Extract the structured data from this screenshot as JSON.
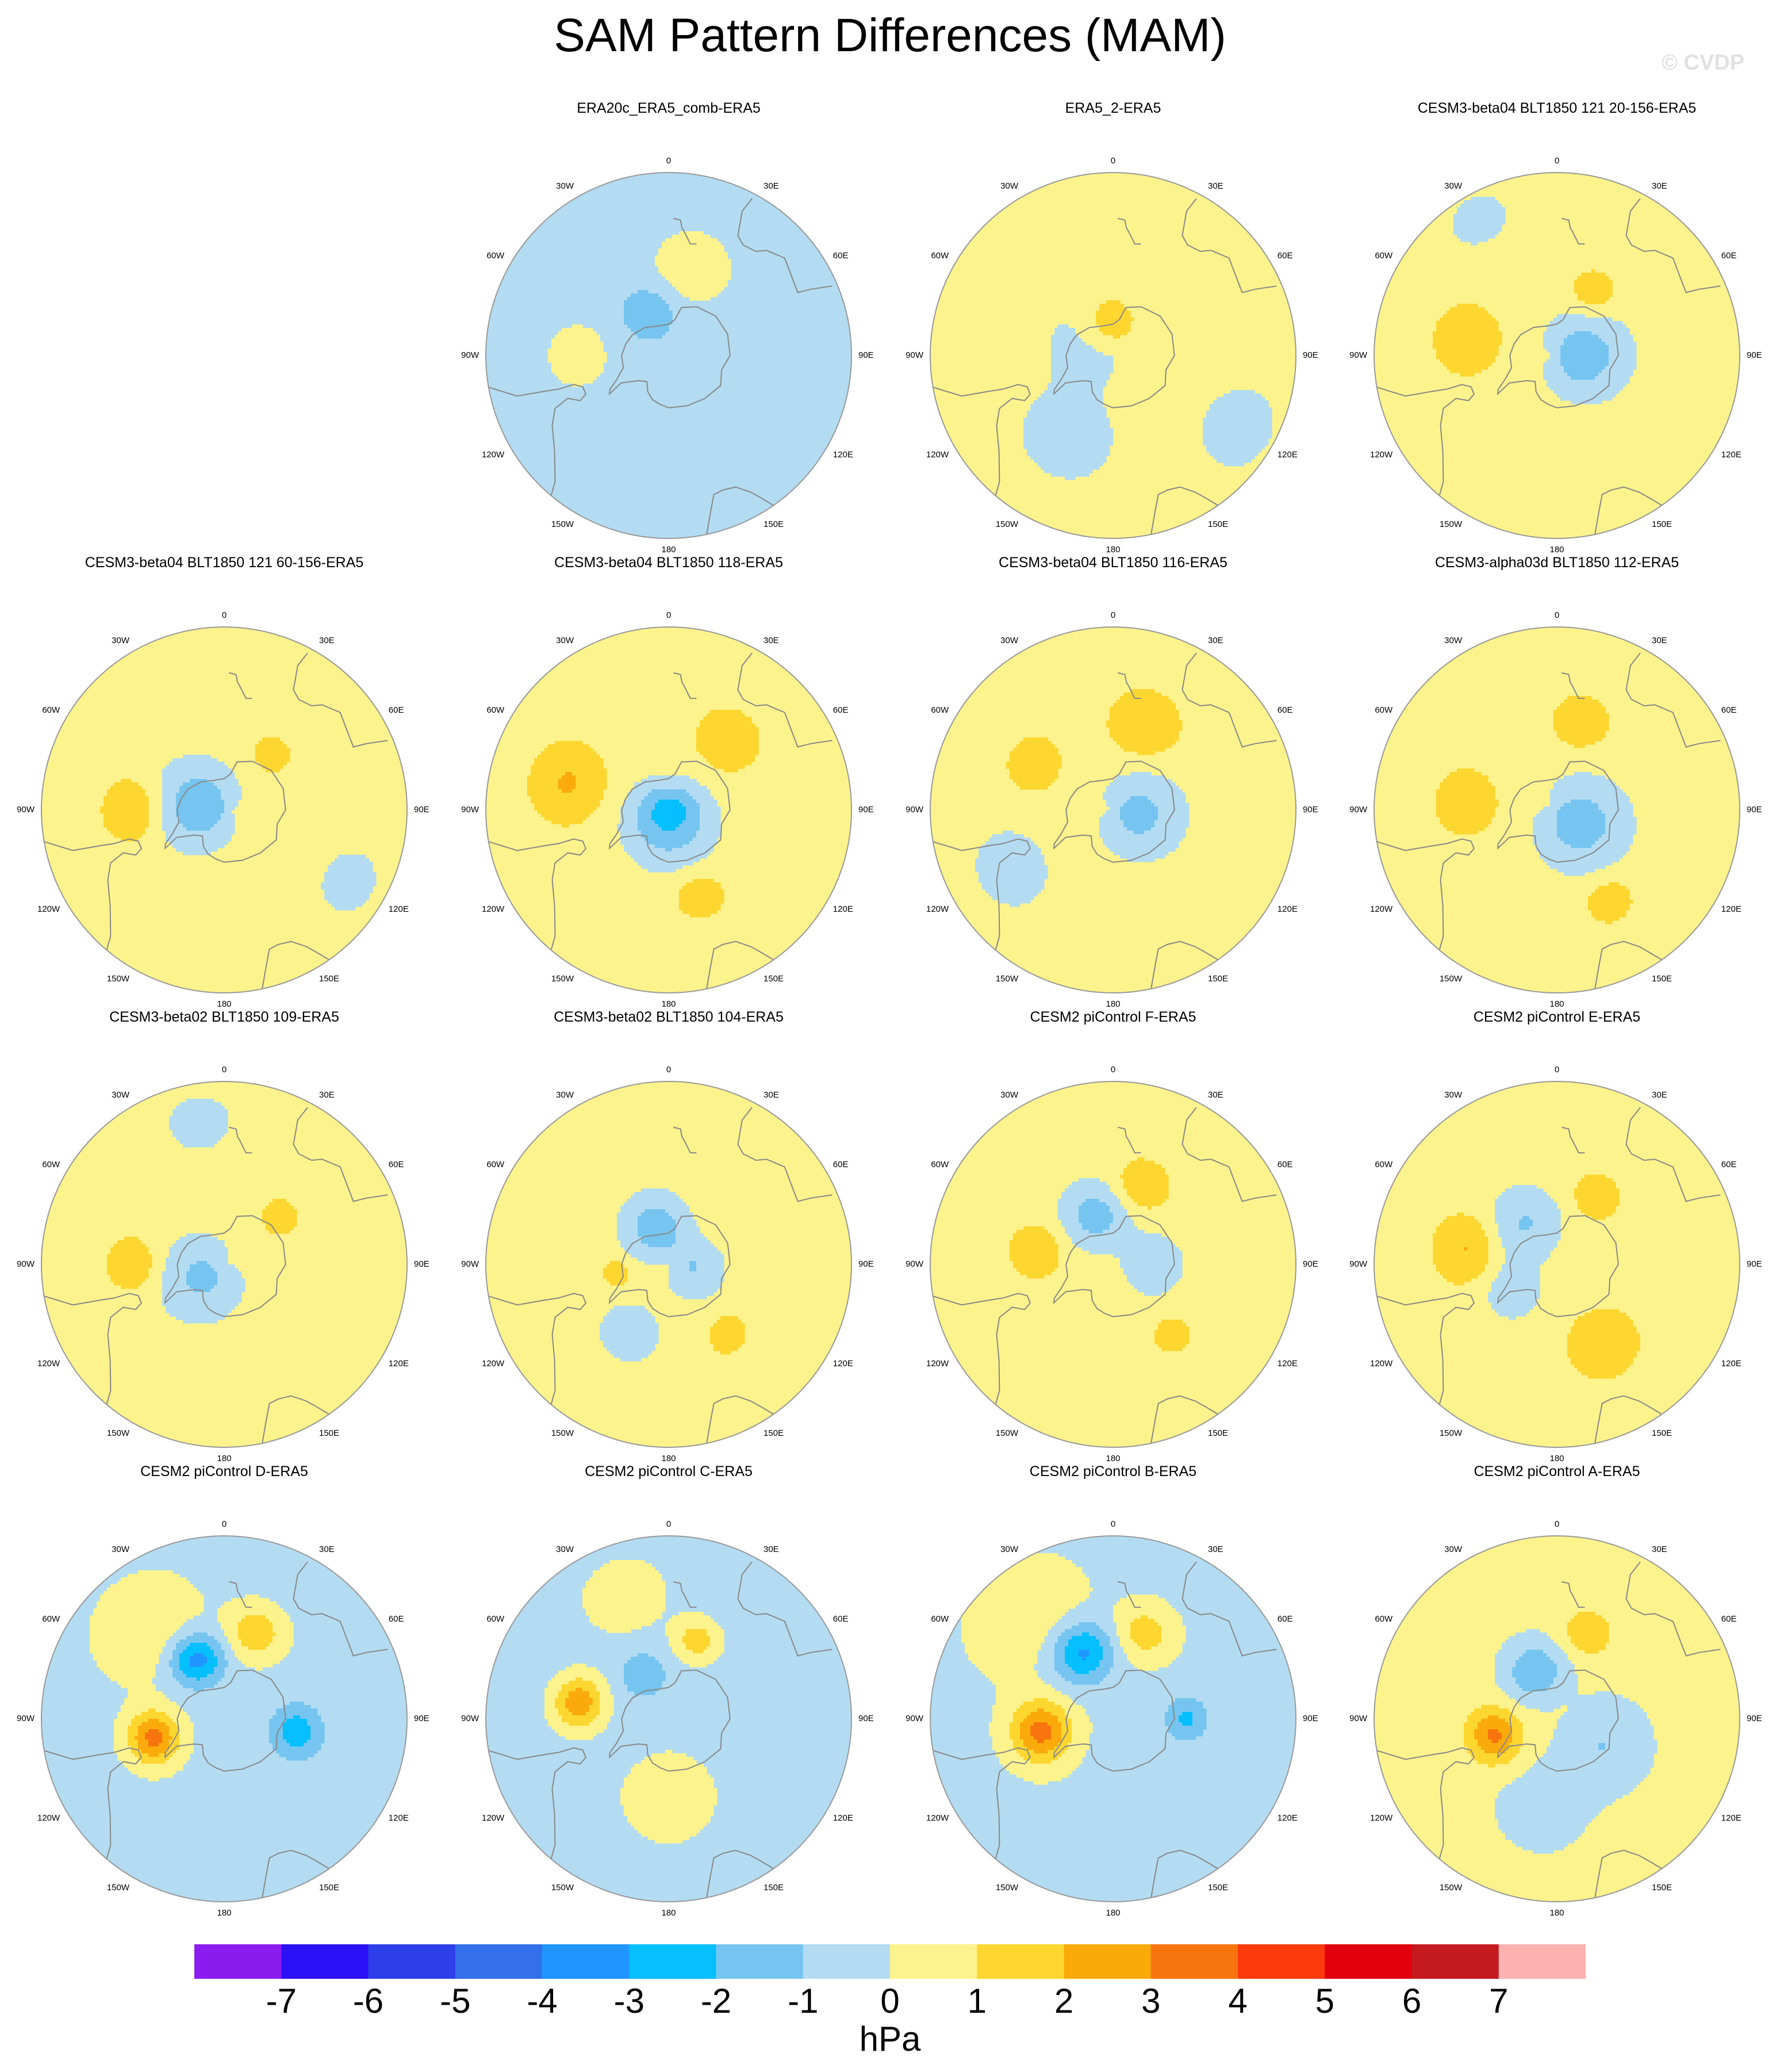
{
  "title": "SAM Pattern Differences (MAM)",
  "watermark": "© CVDP",
  "colors": {
    "land": "#888888",
    "levels": [
      "#8a1cf0",
      "#2c10f8",
      "#2d3fe8",
      "#3370ea",
      "#1f96ff",
      "#05bfff",
      "#76c5f0",
      "#b3dcf2",
      "#fdf38c",
      "#fdd730",
      "#fbaa0c",
      "#f8740e",
      "#fc3a0c",
      "#e3000e",
      "#c51a1f",
      "#fdb2b2"
    ]
  },
  "lon_labels": [
    "0",
    "30E",
    "60E",
    "90E",
    "120E",
    "150E",
    "180",
    "150W",
    "120W",
    "90W",
    "60W",
    "30W"
  ],
  "chart_data": {
    "type": "heatmap",
    "projection": "polar stereographic, South Pole",
    "units": "hPa",
    "colorbar": {
      "levels": [
        -7,
        -6,
        -5,
        -4,
        -3,
        -2,
        -1,
        0,
        1,
        2,
        3,
        4,
        5,
        6,
        7
      ],
      "tick_labels": [
        "-7",
        "-6",
        "-5",
        "-4",
        "-3",
        "-2",
        "-1",
        "0",
        "1",
        "2",
        "3",
        "4",
        "5",
        "6",
        "7"
      ],
      "unit_label": "hPa"
    },
    "panels": [
      {
        "title": "ERA20c_ERA5_comb-ERA5",
        "row": 0,
        "col": 1,
        "base": -0.5,
        "features": [
          {
            "lon": 270,
            "lat": -55,
            "amp": 0.9,
            "sigma": 10
          },
          {
            "lon": 165,
            "lat": -55,
            "amp": 1.1,
            "sigma": 11
          },
          {
            "lon": 205,
            "lat": -72,
            "amp": -1.5,
            "sigma": 7
          }
        ]
      },
      {
        "title": "ERA5_2-ERA5",
        "row": 0,
        "col": 2,
        "base": 0.5,
        "features": [
          {
            "lon": 240,
            "lat": -80,
            "amp": -1.1,
            "sigma": 12
          },
          {
            "lon": 330,
            "lat": -55,
            "amp": -1.0,
            "sigma": 14
          },
          {
            "lon": 190,
            "lat": -78,
            "amp": 1.6,
            "sigma": 8
          },
          {
            "lon": 60,
            "lat": -35,
            "amp": -0.9,
            "sigma": 12
          }
        ]
      },
      {
        "title": "CESM3-beta04 BLT1850 121 20-156-ERA5",
        "row": 0,
        "col": 3,
        "base": 0.5,
        "features": [
          {
            "lon": 90,
            "lat": -80,
            "amp": -2.1,
            "sigma": 12
          },
          {
            "lon": 260,
            "lat": -55,
            "amp": 1.4,
            "sigma": 9
          },
          {
            "lon": 150,
            "lat": -62,
            "amp": 1.3,
            "sigma": 6
          },
          {
            "lon": 210,
            "lat": -30,
            "amp": -0.9,
            "sigma": 8
          }
        ]
      },
      {
        "title": "CESM3-beta04 BLT1850 121 60-156-ERA5",
        "row": 1,
        "col": 0,
        "base": 0.5,
        "features": [
          {
            "lon": 260,
            "lat": -80,
            "amp": -2.2,
            "sigma": 12
          },
          {
            "lon": 270,
            "lat": -55,
            "amp": 1.6,
            "sigma": 8
          },
          {
            "lon": 140,
            "lat": -62,
            "amp": 1.2,
            "sigma": 5
          },
          {
            "lon": 60,
            "lat": -35,
            "amp": -0.8,
            "sigma": 10
          }
        ]
      },
      {
        "title": "CESM3-beta04 BLT1850 118-ERA5",
        "row": 1,
        "col": 1,
        "base": 0.5,
        "features": [
          {
            "lon": 0,
            "lat": -90,
            "amp": -3.0,
            "sigma": 13
          },
          {
            "lon": 255,
            "lat": -50,
            "amp": 1.6,
            "sigma": 10
          },
          {
            "lon": 140,
            "lat": -55,
            "amp": 1.5,
            "sigma": 8
          },
          {
            "lon": 20,
            "lat": -55,
            "amp": 1.4,
            "sigma": 6
          }
        ]
      },
      {
        "title": "CESM3-beta04 BLT1850 116-ERA5",
        "row": 1,
        "col": 2,
        "base": 0.5,
        "features": [
          {
            "lon": 80,
            "lat": -80,
            "amp": -1.8,
            "sigma": 12
          },
          {
            "lon": 240,
            "lat": -55,
            "amp": 1.4,
            "sigma": 7
          },
          {
            "lon": 160,
            "lat": -55,
            "amp": 1.5,
            "sigma": 9
          },
          {
            "lon": 300,
            "lat": -45,
            "amp": -0.9,
            "sigma": 12
          }
        ]
      },
      {
        "title": "CESM3-alpha03d BLT1850 112-ERA5",
        "row": 1,
        "col": 3,
        "base": 0.5,
        "features": [
          {
            "lon": 60,
            "lat": -80,
            "amp": -2.0,
            "sigma": 13
          },
          {
            "lon": 265,
            "lat": -55,
            "amp": 1.5,
            "sigma": 8
          },
          {
            "lon": 165,
            "lat": -55,
            "amp": 1.4,
            "sigma": 7
          },
          {
            "lon": 30,
            "lat": -50,
            "amp": 1.3,
            "sigma": 6
          }
        ]
      },
      {
        "title": "CESM3-beta02 BLT1850 109-ERA5",
        "row": 2,
        "col": 0,
        "base": 0.5,
        "features": [
          {
            "lon": 300,
            "lat": -80,
            "amp": -1.7,
            "sigma": 12
          },
          {
            "lon": 270,
            "lat": -55,
            "amp": 1.4,
            "sigma": 7
          },
          {
            "lon": 130,
            "lat": -62,
            "amp": 1.2,
            "sigma": 5
          },
          {
            "lon": 190,
            "lat": -35,
            "amp": -0.9,
            "sigma": 9
          }
        ]
      },
      {
        "title": "CESM3-beta02 BLT1850 104-ERA5",
        "row": 2,
        "col": 1,
        "base": 0.5,
        "features": [
          {
            "lon": 200,
            "lat": -75,
            "amp": -2.1,
            "sigma": 9
          },
          {
            "lon": 280,
            "lat": -70,
            "amp": 1.2,
            "sigma": 4
          },
          {
            "lon": 40,
            "lat": -55,
            "amp": 1.3,
            "sigma": 5
          },
          {
            "lon": 80,
            "lat": -80,
            "amp": -1.5,
            "sigma": 8
          },
          {
            "lon": 330,
            "lat": -60,
            "amp": -0.9,
            "sigma": 10
          }
        ]
      },
      {
        "title": "CESM2 piControl F-ERA5",
        "row": 2,
        "col": 2,
        "base": 0.5,
        "features": [
          {
            "lon": 200,
            "lat": -70,
            "amp": -2.0,
            "sigma": 9
          },
          {
            "lon": 260,
            "lat": -60,
            "amp": 1.4,
            "sigma": 7
          },
          {
            "lon": 160,
            "lat": -58,
            "amp": 1.5,
            "sigma": 7
          },
          {
            "lon": 40,
            "lat": -55,
            "amp": 1.2,
            "sigma": 5
          },
          {
            "lon": 90,
            "lat": -75,
            "amp": -1.0,
            "sigma": 10
          }
        ]
      },
      {
        "title": "CESM2 piControl E-ERA5",
        "row": 2,
        "col": 3,
        "base": 0.5,
        "features": [
          {
            "lon": 30,
            "lat": -55,
            "amp": 1.5,
            "sigma": 9
          },
          {
            "lon": 260,
            "lat": -55,
            "amp": 1.6,
            "sigma": 9
          },
          {
            "lon": 150,
            "lat": -60,
            "amp": 1.4,
            "sigma": 6
          },
          {
            "lon": 220,
            "lat": -70,
            "amp": -1.6,
            "sigma": 10
          },
          {
            "lon": 300,
            "lat": -70,
            "amp": -1.2,
            "sigma": 8
          }
        ]
      },
      {
        "title": "CESM2 piControl D-ERA5",
        "row": 3,
        "col": 0,
        "base": -0.3,
        "features": [
          {
            "lon": 285,
            "lat": -62,
            "amp": 3.6,
            "sigma": 7
          },
          {
            "lon": 205,
            "lat": -65,
            "amp": -3.3,
            "sigma": 7
          },
          {
            "lon": 160,
            "lat": -55,
            "amp": 2.1,
            "sigma": 7
          },
          {
            "lon": 80,
            "lat": -62,
            "amp": -2.3,
            "sigma": 7
          },
          {
            "lon": 220,
            "lat": -45,
            "amp": 1.0,
            "sigma": 14
          }
        ]
      },
      {
        "title": "CESM2 piControl C-ERA5",
        "row": 3,
        "col": 1,
        "base": -0.5,
        "features": [
          {
            "lon": 260,
            "lat": -55,
            "amp": 3.2,
            "sigma": 7
          },
          {
            "lon": 210,
            "lat": -70,
            "amp": -1.4,
            "sigma": 6
          },
          {
            "lon": 160,
            "lat": -58,
            "amp": 2.0,
            "sigma": 6
          },
          {
            "lon": 0,
            "lat": -60,
            "amp": 1.1,
            "sigma": 14
          },
          {
            "lon": 200,
            "lat": -40,
            "amp": 1.0,
            "sigma": 12
          }
        ]
      },
      {
        "title": "CESM2 piControl B-ERA5",
        "row": 3,
        "col": 2,
        "base": -0.2,
        "features": [
          {
            "lon": 280,
            "lat": -62,
            "amp": 3.6,
            "sigma": 8
          },
          {
            "lon": 205,
            "lat": -62,
            "amp": -3.1,
            "sigma": 8
          },
          {
            "lon": 160,
            "lat": -55,
            "amp": 1.8,
            "sigma": 7
          },
          {
            "lon": 90,
            "lat": -62,
            "amp": -2.0,
            "sigma": 6
          },
          {
            "lon": 220,
            "lat": -40,
            "amp": 0.9,
            "sigma": 14
          }
        ]
      },
      {
        "title": "CESM2 piControl A-ERA5",
        "row": 3,
        "col": 3,
        "base": 0.3,
        "features": [
          {
            "lon": 285,
            "lat": -65,
            "amp": 2.9,
            "sigma": 7
          },
          {
            "lon": 205,
            "lat": -70,
            "amp": -2.2,
            "sigma": 8
          },
          {
            "lon": 160,
            "lat": -55,
            "amp": 1.7,
            "sigma": 6
          },
          {
            "lon": 60,
            "lat": -70,
            "amp": -1.3,
            "sigma": 12
          },
          {
            "lon": 350,
            "lat": -55,
            "amp": -0.8,
            "sigma": 12
          }
        ]
      }
    ]
  }
}
